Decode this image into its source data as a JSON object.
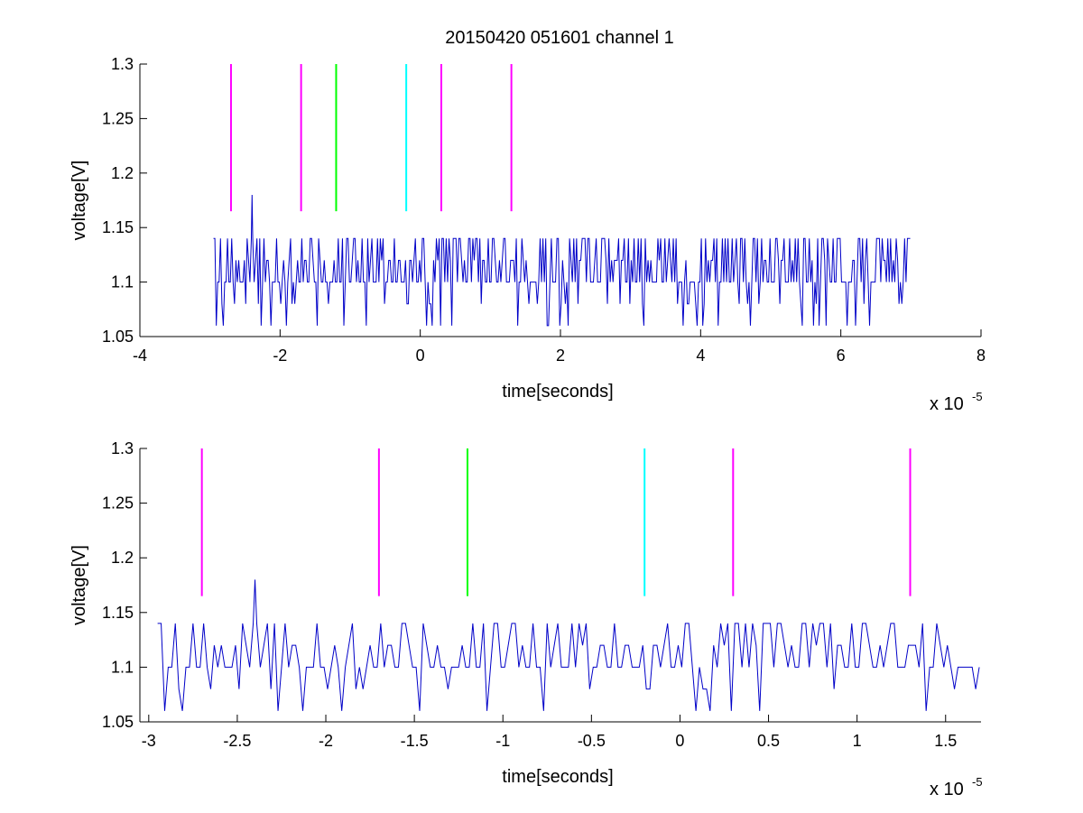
{
  "chart_data": [
    {
      "type": "line",
      "title": "20150420 051601 channel 1",
      "xlabel": "time[seconds]",
      "ylabel": "voltage[V]",
      "x_multiplier_label": "x 10",
      "x_multiplier_exponent": "-5",
      "xlim": [
        -4,
        8
      ],
      "ylim": [
        1.05,
        1.3
      ],
      "xticks": [
        -4,
        -2,
        0,
        2,
        4,
        6,
        8
      ],
      "xtick_labels": [
        "-4",
        "-2",
        "0",
        "2",
        "4",
        "6",
        "8"
      ],
      "yticks": [
        1.05,
        1.1,
        1.15,
        1.2,
        1.25,
        1.3
      ],
      "ytick_labels": [
        "1.05",
        "1.1",
        "1.15",
        "1.2",
        "1.25",
        "1.3"
      ],
      "grid": false,
      "series": [
        {
          "color": "#0000c8",
          "x_range": [
            -2.95,
            7.0
          ],
          "baseline": 1.1,
          "levels": [
            1.06,
            1.08,
            1.1,
            1.12,
            1.14
          ],
          "spike": {
            "x": -2.4,
            "y": 1.18
          }
        }
      ],
      "markers": [
        {
          "x": -2.7,
          "color": "#ff00ff",
          "y_range": [
            1.165,
            1.3
          ]
        },
        {
          "x": -1.7,
          "color": "#ff00ff",
          "y_range": [
            1.165,
            1.3
          ]
        },
        {
          "x": -1.2,
          "color": "#00ff00",
          "y_range": [
            1.165,
            1.3
          ]
        },
        {
          "x": -0.2,
          "color": "#00ffff",
          "y_range": [
            1.165,
            1.3
          ]
        },
        {
          "x": 0.3,
          "color": "#ff00ff",
          "y_range": [
            1.165,
            1.3
          ]
        },
        {
          "x": 1.3,
          "color": "#ff00ff",
          "y_range": [
            1.165,
            1.3
          ]
        }
      ]
    },
    {
      "type": "line",
      "xlabel": "time[seconds]",
      "ylabel": "voltage[V]",
      "x_multiplier_label": "x 10",
      "x_multiplier_exponent": "-5",
      "xlim": [
        -3.05,
        1.7
      ],
      "ylim": [
        1.05,
        1.3
      ],
      "xticks": [
        -3,
        -2.5,
        -2,
        -1.5,
        -1,
        -0.5,
        0,
        0.5,
        1,
        1.5
      ],
      "xtick_labels": [
        "-3",
        "-2.5",
        "-2",
        "-1.5",
        "-1",
        "-0.5",
        "0",
        "0.5",
        "1",
        "1.5"
      ],
      "yticks": [
        1.05,
        1.1,
        1.15,
        1.2,
        1.25,
        1.3
      ],
      "ytick_labels": [
        "1.05",
        "1.1",
        "1.15",
        "1.2",
        "1.25",
        "1.3"
      ],
      "grid": false,
      "series": [
        {
          "color": "#0000c8",
          "x_range": [
            -2.95,
            1.7
          ],
          "baseline": 1.1,
          "levels": [
            1.06,
            1.08,
            1.1,
            1.12,
            1.14
          ],
          "spike": {
            "x": -2.4,
            "y": 1.18
          }
        }
      ],
      "markers": [
        {
          "x": -2.7,
          "color": "#ff00ff",
          "y_range": [
            1.165,
            1.3
          ]
        },
        {
          "x": -1.7,
          "color": "#ff00ff",
          "y_range": [
            1.165,
            1.3
          ]
        },
        {
          "x": -1.2,
          "color": "#00ff00",
          "y_range": [
            1.165,
            1.3
          ]
        },
        {
          "x": -0.2,
          "color": "#00ffff",
          "y_range": [
            1.165,
            1.3
          ]
        },
        {
          "x": 0.3,
          "color": "#ff00ff",
          "y_range": [
            1.165,
            1.3
          ]
        },
        {
          "x": 1.3,
          "color": "#ff00ff",
          "y_range": [
            1.165,
            1.3
          ]
        }
      ]
    }
  ]
}
